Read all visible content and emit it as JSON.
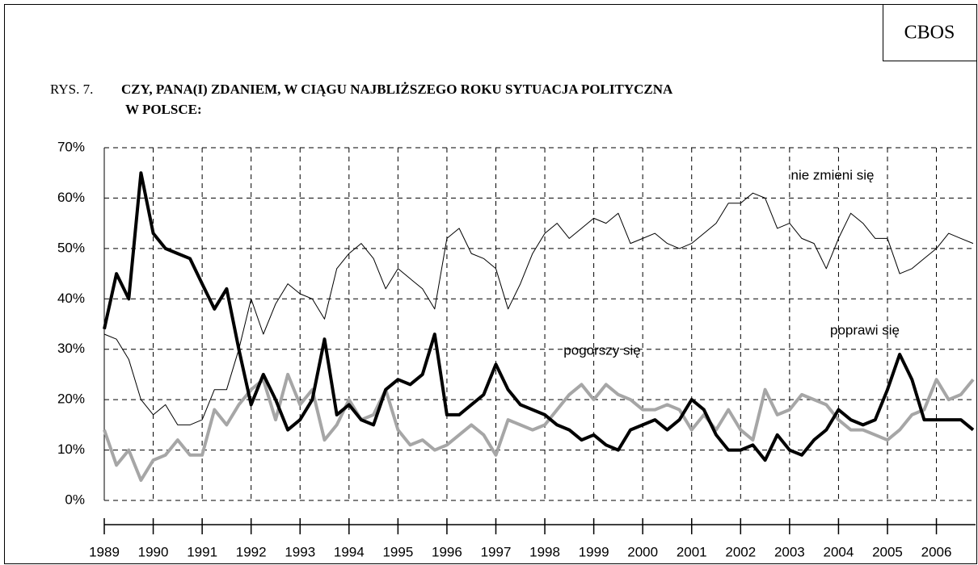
{
  "chart_data": {
    "type": "line",
    "source": "CBOS",
    "figure_label": "RYS. 7.",
    "title": [
      "CZY, PANA(I) ZDANIEM, W CIĄGU NAJBLIŻSZEGO ROKU SYTUACJA POLITYCZNA",
      "W POLSCE:"
    ],
    "x": [
      1989,
      1989.25,
      1989.5,
      1989.75,
      1990,
      1990.25,
      1990.5,
      1990.75,
      1991,
      1991.25,
      1991.5,
      1991.75,
      1992,
      1992.25,
      1992.5,
      1992.75,
      1993,
      1993.25,
      1993.5,
      1993.75,
      1994,
      1994.25,
      1994.5,
      1994.75,
      1995,
      1995.25,
      1995.5,
      1995.75,
      1996,
      1996.25,
      1996.5,
      1996.75,
      1997,
      1997.25,
      1997.5,
      1997.75,
      1998,
      1998.25,
      1998.5,
      1998.75,
      1999,
      1999.25,
      1999.5,
      1999.75,
      2000,
      2000.25,
      2000.5,
      2000.75,
      2001,
      2001.25,
      2001.5,
      2001.75,
      2002,
      2002.25,
      2002.5,
      2002.75,
      2003,
      2003.25,
      2003.5,
      2003.75,
      2004,
      2004.25,
      2004.5,
      2004.75,
      2005,
      2005.25,
      2005.5,
      2005.75,
      2006,
      2006.25,
      2006.5,
      2006.75
    ],
    "series": [
      {
        "name": "nie zmieni się",
        "color": "#000000",
        "width": 1,
        "values": [
          33,
          32,
          28,
          20,
          17,
          19,
          15,
          15,
          16,
          22,
          22,
          30,
          40,
          33,
          39,
          43,
          41,
          40,
          36,
          46,
          49,
          51,
          48,
          42,
          46,
          44,
          42,
          38,
          52,
          54,
          49,
          48,
          46,
          38,
          43,
          49,
          53,
          55,
          52,
          54,
          56,
          55,
          57,
          51,
          52,
          53,
          51,
          50,
          51,
          53,
          55,
          59,
          59,
          61,
          60,
          54,
          55,
          52,
          51,
          46,
          52,
          57,
          55,
          52,
          52,
          45,
          46,
          48,
          50,
          53,
          52,
          51
        ]
      },
      {
        "name": "pogorszy się",
        "color": "#a6a6a6",
        "width": 4,
        "values": [
          14,
          7,
          10,
          4,
          8,
          9,
          12,
          9,
          9,
          18,
          15,
          19,
          22,
          24,
          16,
          25,
          19,
          22,
          12,
          15,
          20,
          16,
          17,
          22,
          14,
          11,
          12,
          10,
          11,
          13,
          15,
          13,
          9,
          16,
          15,
          14,
          15,
          18,
          21,
          23,
          20,
          23,
          21,
          20,
          18,
          18,
          19,
          18,
          14,
          17,
          14,
          18,
          14,
          12,
          22,
          17,
          18,
          21,
          20,
          19,
          16,
          14,
          14,
          13,
          12,
          14,
          17,
          18,
          24,
          20,
          21,
          24
        ]
      },
      {
        "name": "poprawi się",
        "color": "#000000",
        "width": 4,
        "values": [
          34,
          45,
          40,
          65,
          53,
          50,
          49,
          48,
          43,
          38,
          42,
          30,
          19,
          25,
          20,
          14,
          16,
          20,
          32,
          17,
          19,
          16,
          15,
          22,
          24,
          23,
          25,
          33,
          17,
          17,
          19,
          21,
          27,
          22,
          19,
          18,
          17,
          15,
          14,
          12,
          13,
          11,
          10,
          14,
          15,
          16,
          14,
          16,
          20,
          18,
          13,
          10,
          10,
          11,
          8,
          13,
          10,
          9,
          12,
          14,
          18,
          16,
          15,
          16,
          22,
          29,
          24,
          16,
          16,
          16,
          16,
          14
        ]
      }
    ],
    "xlim": [
      1989,
      2006.8
    ],
    "xticks": [
      1989,
      1990,
      1991,
      1992,
      1993,
      1994,
      1995,
      1996,
      1997,
      1998,
      1999,
      2000,
      2001,
      2002,
      2003,
      2004,
      2005,
      2006
    ],
    "ylim": [
      0,
      70
    ],
    "yticks": [
      {
        "value": 0,
        "label": "0%"
      },
      {
        "value": 10,
        "label": "10%"
      },
      {
        "value": 20,
        "label": "20%"
      },
      {
        "value": 30,
        "label": "30%"
      },
      {
        "value": 40,
        "label": "40%"
      },
      {
        "value": 50,
        "label": "50%"
      },
      {
        "value": 60,
        "label": "60%"
      },
      {
        "value": 70,
        "label": "70%"
      }
    ],
    "grid": true
  }
}
